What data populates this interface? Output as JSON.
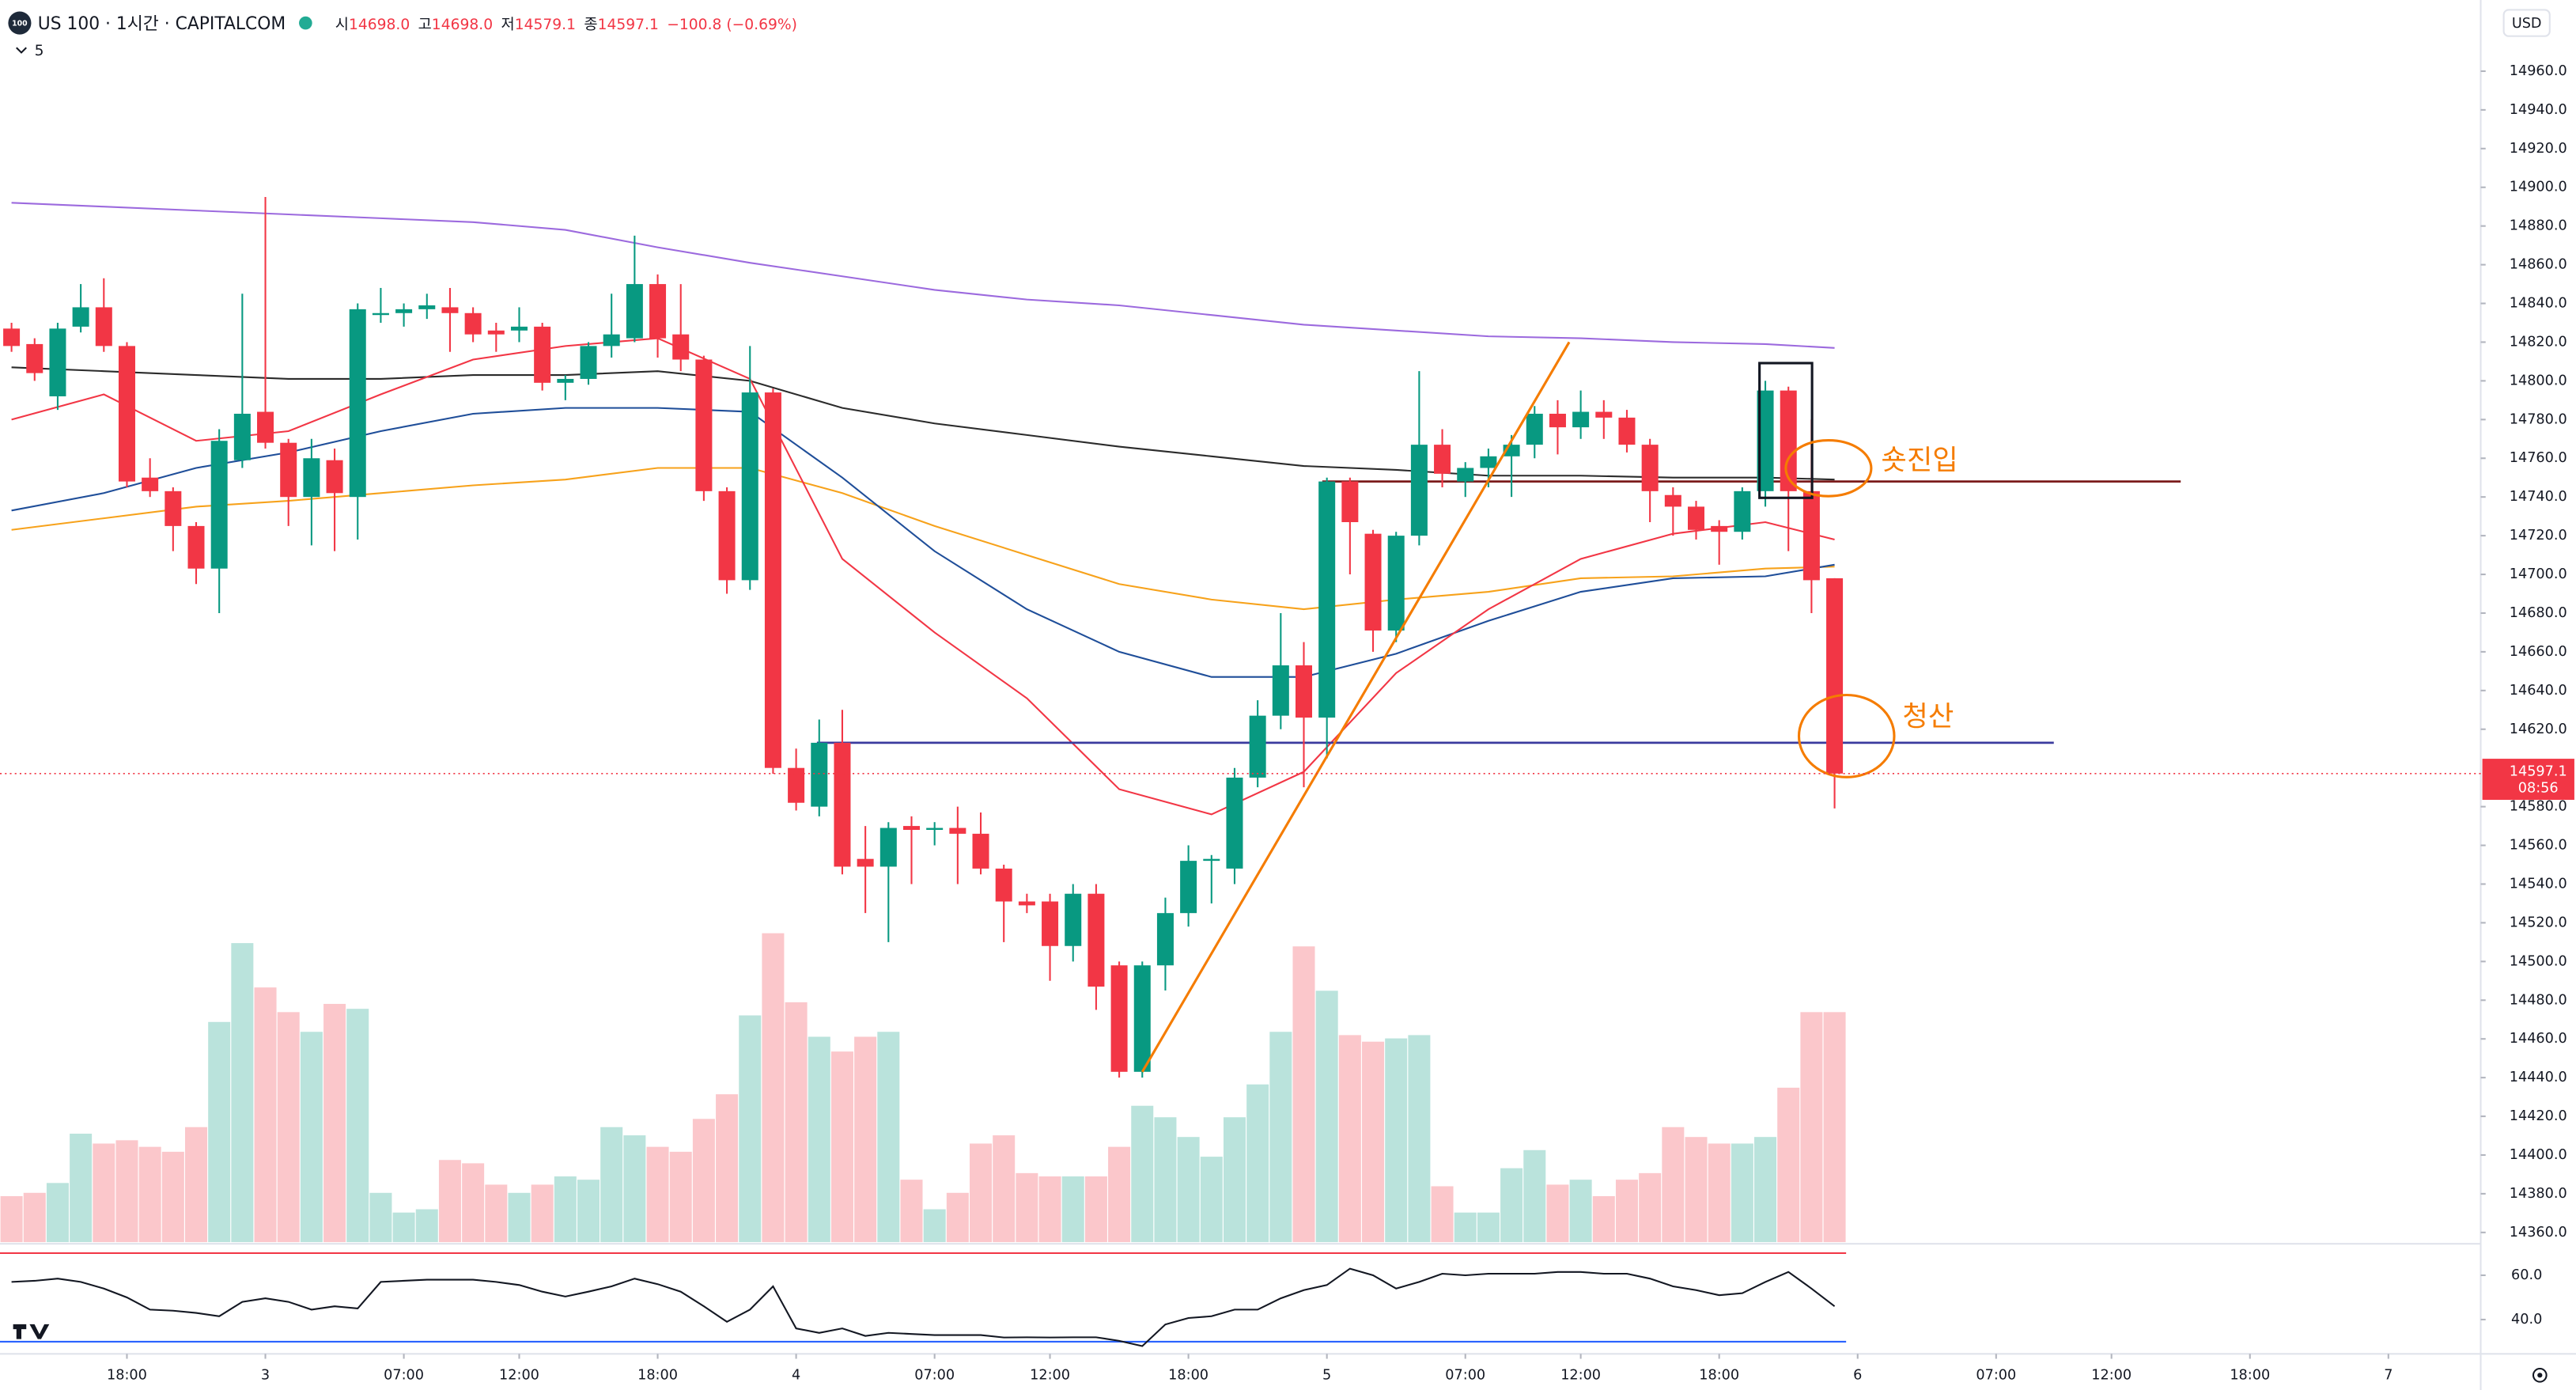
{
  "chart_data": {
    "type": "candlestick",
    "logo_text": "100",
    "title": "US 100 · 1시간 · CAPITALCOM",
    "indicator_count": "5",
    "currency": "USD",
    "ohlc_legend": [
      {
        "label": "시",
        "value": "14698.0"
      },
      {
        "label": "고",
        "value": "14698.0"
      },
      {
        "label": "저",
        "value": "14579.1"
      },
      {
        "label": "종",
        "value": "14597.1"
      }
    ],
    "change": "−100.8 (−0.69%)",
    "last_price_label": "14597.1",
    "countdown": "08:56",
    "xlim": [
      -0.5,
      107
    ],
    "ylim": [
      14355,
      14973
    ],
    "xticks": [
      {
        "value": 5,
        "label": "18:00"
      },
      {
        "value": 11,
        "label": "3"
      },
      {
        "value": 17,
        "label": "07:00"
      },
      {
        "value": 22,
        "label": "12:00"
      },
      {
        "value": 28,
        "label": "18:00"
      },
      {
        "value": 34,
        "label": "4"
      },
      {
        "value": 40,
        "label": "07:00"
      },
      {
        "value": 45,
        "label": "12:00"
      },
      {
        "value": 51,
        "label": "18:00"
      },
      {
        "value": 57,
        "label": "5"
      },
      {
        "value": 63,
        "label": "07:00"
      },
      {
        "value": 68,
        "label": "12:00"
      },
      {
        "value": 74,
        "label": "18:00"
      },
      {
        "value": 80,
        "label": "6"
      },
      {
        "value": 86,
        "label": "07:00"
      },
      {
        "value": 91,
        "label": "12:00"
      },
      {
        "value": 97,
        "label": "18:00"
      },
      {
        "value": 103,
        "label": "7"
      }
    ],
    "yticks": [
      {
        "value": 14360,
        "label": "14360.0"
      },
      {
        "value": 14380,
        "label": "14380.0"
      },
      {
        "value": 14400,
        "label": "14400.0"
      },
      {
        "value": 14420,
        "label": "14420.0"
      },
      {
        "value": 14440,
        "label": "14440.0"
      },
      {
        "value": 14460,
        "label": "14460.0"
      },
      {
        "value": 14480,
        "label": "14480.0"
      },
      {
        "value": 14500,
        "label": "14500.0"
      },
      {
        "value": 14520,
        "label": "14520.0"
      },
      {
        "value": 14540,
        "label": "14540.0"
      },
      {
        "value": 14560,
        "label": "14560.0"
      },
      {
        "value": 14580,
        "label": "14580.0"
      },
      {
        "value": 14620,
        "label": "14620.0"
      },
      {
        "value": 14640,
        "label": "14640.0"
      },
      {
        "value": 14660,
        "label": "14660.0"
      },
      {
        "value": 14680,
        "label": "14680.0"
      },
      {
        "value": 14700,
        "label": "14700.0"
      },
      {
        "value": 14720,
        "label": "14720.0"
      },
      {
        "value": 14740,
        "label": "14740.0"
      },
      {
        "value": 14760,
        "label": "14760.0"
      },
      {
        "value": 14780,
        "label": "14780.0"
      },
      {
        "value": 14800,
        "label": "14800.0"
      },
      {
        "value": 14820,
        "label": "14820.0"
      },
      {
        "value": 14840,
        "label": "14840.0"
      },
      {
        "value": 14860,
        "label": "14860.0"
      },
      {
        "value": 14880,
        "label": "14880.0"
      },
      {
        "value": 14900,
        "label": "14900.0"
      },
      {
        "value": 14920,
        "label": "14920.0"
      },
      {
        "value": 14940,
        "label": "14940.0"
      },
      {
        "value": 14960,
        "label": "14960.0"
      }
    ],
    "candles": {
      "up_color": "#089981",
      "down_color": "#f23645",
      "open": [
        14827,
        14819,
        14792,
        14828,
        14838,
        14818,
        14750,
        14743,
        14725,
        14703,
        14759,
        14784,
        14768,
        14740,
        14759,
        14740,
        14834,
        14835,
        14837,
        14838,
        14835,
        14826,
        14826,
        14828,
        14799,
        14801,
        14818,
        14822,
        14850,
        14824,
        14811,
        14743,
        14697,
        14794,
        14600,
        14580,
        14613,
        14553,
        14549,
        14570,
        14568,
        14569,
        14566,
        14548,
        14531,
        14531,
        14508,
        14535,
        14498,
        14443,
        14498,
        14525,
        14552,
        14548,
        14595,
        14627,
        14653,
        14626,
        14748,
        14721,
        14671,
        14720,
        14767,
        14748,
        14755,
        14761,
        14767,
        14783,
        14776,
        14784,
        14781,
        14767,
        14741,
        14735,
        14725,
        14722,
        14743,
        14795,
        14743,
        14698
      ],
      "high": [
        14830,
        14822,
        14830,
        14850,
        14853,
        14820,
        14760,
        14745,
        14727,
        14775,
        14845,
        14895,
        14770,
        14770,
        14765,
        14840,
        14848,
        14840,
        14845,
        14848,
        14838,
        14830,
        14838,
        14830,
        14803,
        14820,
        14845,
        14875,
        14855,
        14850,
        14813,
        14745,
        14818,
        14796,
        14610,
        14625,
        14630,
        14570,
        14572,
        14575,
        14572,
        14580,
        14577,
        14550,
        14535,
        14535,
        14540,
        14540,
        14500,
        14500,
        14533,
        14560,
        14555,
        14600,
        14635,
        14680,
        14665,
        14750,
        14750,
        14723,
        14722,
        14805,
        14775,
        14758,
        14765,
        14772,
        14787,
        14790,
        14795,
        14790,
        14785,
        14770,
        14745,
        14738,
        14728,
        14745,
        14800,
        14797,
        14780,
        14698
      ],
      "low": [
        14815,
        14800,
        14785,
        14825,
        14815,
        14745,
        14740,
        14712,
        14695,
        14680,
        14755,
        14765,
        14725,
        14715,
        14712,
        14718,
        14830,
        14828,
        14832,
        14815,
        14820,
        14815,
        14820,
        14795,
        14790,
        14798,
        14812,
        14820,
        14812,
        14805,
        14738,
        14690,
        14692,
        14597,
        14578,
        14575,
        14545,
        14525,
        14510,
        14540,
        14560,
        14540,
        14545,
        14510,
        14525,
        14490,
        14500,
        14475,
        14440,
        14440,
        14485,
        14518,
        14530,
        14540,
        14590,
        14620,
        14590,
        14605,
        14700,
        14660,
        14665,
        14715,
        14745,
        14740,
        14745,
        14740,
        14760,
        14762,
        14770,
        14770,
        14763,
        14727,
        14720,
        14718,
        14705,
        14718,
        14735,
        14712,
        14680,
        14579.1
      ],
      "close": [
        14818,
        14804,
        14827,
        14838,
        14818,
        14748,
        14743,
        14725,
        14703,
        14769,
        14783,
        14768,
        14740,
        14760,
        14742,
        14837,
        14835,
        14837,
        14839,
        14835,
        14824,
        14824,
        14828,
        14799,
        14801,
        14818,
        14824,
        14850,
        14822,
        14811,
        14743,
        14697,
        14794,
        14600,
        14582,
        14613,
        14549,
        14549,
        14569,
        14568,
        14569,
        14566,
        14548,
        14531,
        14529,
        14508,
        14535,
        14487,
        14443,
        14498,
        14525,
        14552,
        14553,
        14595,
        14627,
        14653,
        14626,
        14748,
        14727,
        14671,
        14720,
        14767,
        14752,
        14755,
        14761,
        14767,
        14783,
        14776,
        14784,
        14781,
        14767,
        14743,
        14735,
        14723,
        14722,
        14743,
        14795,
        14743,
        14697,
        14597.1
      ]
    },
    "volume": {
      "ylim": [
        0,
        200
      ],
      "values": [
        28,
        30,
        36,
        66,
        60,
        62,
        58,
        55,
        70,
        134,
        182,
        155,
        140,
        128,
        145,
        142,
        30,
        18,
        20,
        50,
        48,
        35,
        30,
        35,
        40,
        38,
        70,
        65,
        58,
        55,
        75,
        90,
        138,
        188,
        146,
        125,
        116,
        125,
        128,
        38,
        20,
        30,
        60,
        65,
        42,
        40,
        40,
        40,
        58,
        83,
        76,
        64,
        52,
        76,
        96,
        128,
        180,
        153,
        126,
        122,
        124,
        126,
        34,
        18,
        18,
        45,
        56,
        35,
        38,
        28,
        38,
        42,
        70,
        64,
        60,
        60,
        64,
        94,
        140,
        140
      ]
    },
    "ma_x": [
      0,
      4,
      8,
      12,
      16,
      20,
      24,
      28,
      32,
      36,
      40,
      44,
      48,
      52,
      56,
      60,
      64,
      68,
      72,
      76,
      79
    ],
    "moving_averages": [
      {
        "color": "#9c6ade",
        "values": [
          14892,
          14890,
          14888,
          14886,
          14884,
          14882,
          14878,
          14869,
          14861,
          14854,
          14847,
          14842,
          14839,
          14834,
          14829,
          14826,
          14823,
          14822,
          14820,
          14819,
          14817
        ]
      },
      {
        "color": "#2b2b2b",
        "values": [
          14807,
          14805,
          14803,
          14801,
          14801,
          14803,
          14803,
          14805,
          14800,
          14786,
          14778,
          14772,
          14766,
          14761,
          14756,
          14754,
          14751,
          14751,
          14750,
          14750,
          14749
        ]
      },
      {
        "color": "#f7a21b",
        "values": [
          14723,
          14729,
          14735,
          14738,
          14742,
          14746,
          14749,
          14755,
          14755,
          14742,
          14725,
          14710,
          14695,
          14687,
          14682,
          14687,
          14691,
          14698,
          14699,
          14703,
          14704
        ]
      },
      {
        "color": "#1f4e99",
        "values": [
          14733,
          14742,
          14755,
          14763,
          14774,
          14783,
          14786,
          14786,
          14784,
          14750,
          14712,
          14682,
          14660,
          14647,
          14647,
          14659,
          14676,
          14691,
          14698,
          14699,
          14705
        ]
      },
      {
        "color": "#f23645",
        "values": [
          14780,
          14793,
          14769,
          14774,
          14793,
          14811,
          14818,
          14822,
          14801,
          14708,
          14670,
          14636,
          14589,
          14576,
          14598,
          14649,
          14682,
          14708,
          14721,
          14727,
          14718
        ]
      }
    ],
    "levels": [
      {
        "value": 14748,
        "color": "#7b1c1c",
        "x": [
          56.8,
          94
        ]
      },
      {
        "value": 14613,
        "color": "#3b3b9e",
        "x": [
          34.9,
          88.5
        ]
      }
    ],
    "trendline": {
      "color": "#f57c00",
      "x": [
        49,
        67.5
      ],
      "values": [
        14443,
        14820
      ]
    },
    "annotations": [
      {
        "text": "숏진입"
      },
      {
        "text": "청산"
      }
    ],
    "rsi": {
      "color": "#131722",
      "ylim": [
        26,
        72
      ],
      "yticks": [
        {
          "value": 60,
          "label": "60.0"
        },
        {
          "value": 40,
          "label": "40.0"
        }
      ],
      "bands": [
        {
          "value": 70,
          "color": "#f23645"
        },
        {
          "value": 30,
          "color": "#2962ff"
        }
      ],
      "values": [
        57,
        57.5,
        58.5,
        57,
        54,
        50,
        44.5,
        44,
        43,
        41.5,
        48,
        49.6,
        48,
        44.5,
        46,
        45,
        57,
        57.5,
        58,
        58,
        58,
        57,
        55.6,
        52.6,
        50.4,
        52.6,
        55,
        58.5,
        56,
        52.6,
        46,
        39,
        44.5,
        55,
        36,
        34,
        36,
        32.6,
        34,
        33.5,
        33,
        33,
        33,
        31.9,
        32,
        31.9,
        32,
        32,
        30.4,
        28,
        37.8,
        40.7,
        41.5,
        44.5,
        44.5,
        49.6,
        53.3,
        55.6,
        63,
        60,
        54,
        57,
        60.7,
        60,
        60.7,
        60.7,
        60.7,
        61.5,
        61.5,
        60.7,
        60.7,
        58.5,
        55,
        53.3,
        51,
        51.9,
        57,
        61.5,
        54,
        46
      ]
    }
  }
}
